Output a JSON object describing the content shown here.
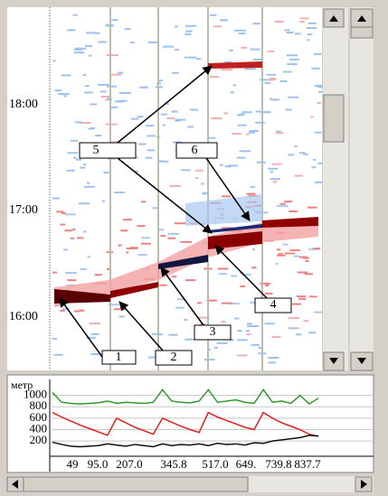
{
  "time_labels": [
    "18:00",
    "17:00",
    "16:00"
  ],
  "callouts": [
    "1",
    "2",
    "3",
    "4",
    "5",
    "6"
  ],
  "chart_data": {
    "type": "line",
    "y_label": "метр",
    "yticks": [
      1000,
      800,
      600,
      400,
      200
    ],
    "ylim": [
      60,
      1200
    ],
    "grid": true,
    "x_labels": [
      "49",
      "95.0",
      "207.0",
      "345.8",
      "517.0",
      "649.",
      "739.8",
      "837.7"
    ],
    "series": [
      {
        "color": "#2e9a2e",
        "values": [
          1050,
          880,
          860,
          850,
          860,
          870,
          900,
          860,
          880,
          870,
          860,
          880,
          1100,
          900,
          880,
          870,
          900,
          1100,
          880,
          900,
          920,
          880,
          860,
          1100,
          880,
          900,
          860,
          1000,
          850,
          950
        ]
      },
      {
        "color": "#e0201c",
        "values": [
          700,
          620,
          550,
          480,
          420,
          360,
          300,
          600,
          520,
          440,
          380,
          320,
          600,
          530,
          460,
          400,
          350,
          700,
          620,
          560,
          500,
          440,
          400,
          700,
          600,
          520,
          460,
          400,
          320,
          280
        ]
      },
      {
        "color": "#111111",
        "values": [
          180,
          140,
          110,
          100,
          110,
          120,
          150,
          130,
          110,
          140,
          120,
          100,
          150,
          120,
          140,
          130,
          150,
          120,
          160,
          140,
          150,
          130,
          170,
          160,
          200,
          220,
          240,
          260,
          300,
          290
        ]
      }
    ]
  }
}
